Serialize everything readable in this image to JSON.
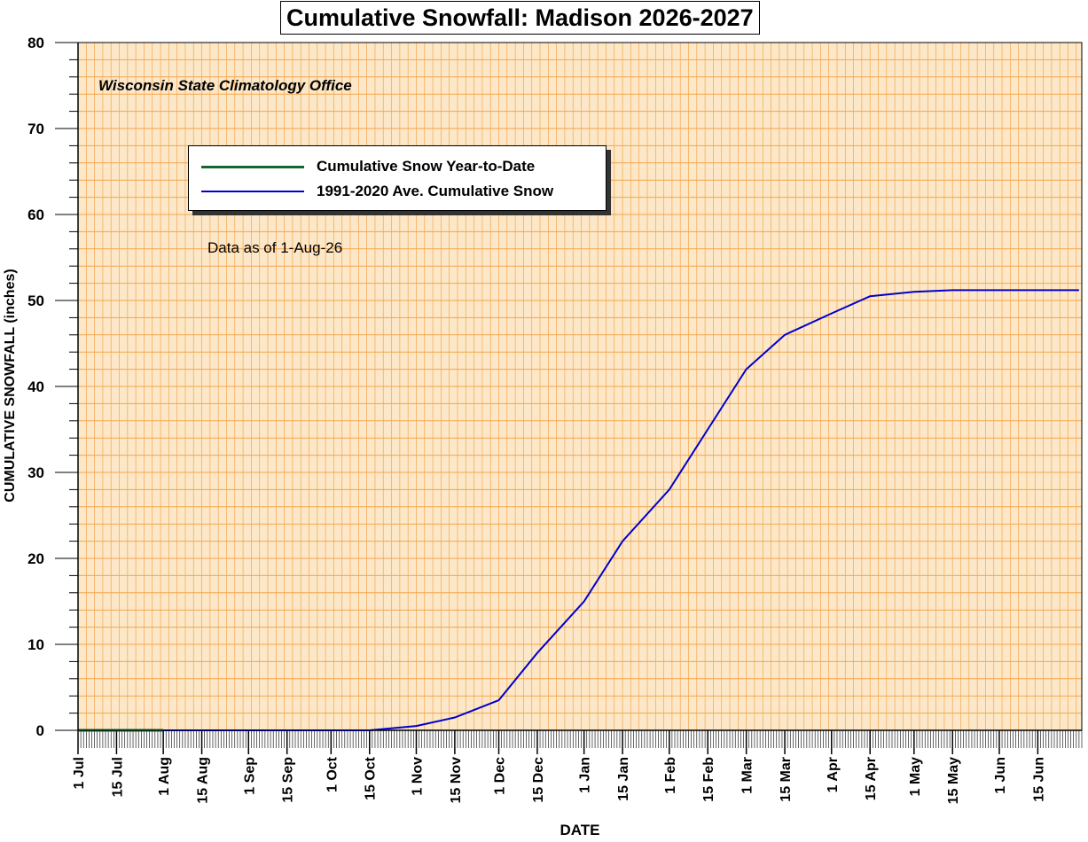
{
  "chart_data": {
    "type": "line",
    "title": "Cumulative Snowfall: Madison 2026-2027",
    "subtitle": "Wisconsin State Climatology Office",
    "annotation": "Data as of 1-Aug-26",
    "xlabel": "DATE",
    "ylabel": "CUMULATIVE SNOWFALL (inches)",
    "ylim": [
      0,
      80
    ],
    "yticks": [
      "0",
      "10",
      "20",
      "30",
      "40",
      "50",
      "60",
      "70",
      "80"
    ],
    "xticks": [
      "1 Jul",
      "15 Jul",
      "1 Aug",
      "15 Aug",
      "1 Sep",
      "15 Sep",
      "1 Oct",
      "15 Oct",
      "1 Nov",
      "15 Nov",
      "1 Dec",
      "15 Dec",
      "1 Jan",
      "15 Jan",
      "1 Feb",
      "15 Feb",
      "1 Mar",
      "15 Mar",
      "1 Apr",
      "15 Apr",
      "1 May",
      "15 May",
      "1 Jun",
      "15 Jun"
    ],
    "grid": true,
    "legend_position": "upper-left",
    "colors": {
      "plot_background": "#fce8c8",
      "gridline": "#f4a54c",
      "year_to_date": "#116633",
      "average": "#0000cc"
    },
    "series": [
      {
        "name": "Cumulative Snow Year-to-Date",
        "x": [
          "1 Jul",
          "1 Aug"
        ],
        "values": [
          0,
          0
        ]
      },
      {
        "name": "1991-2020 Ave. Cumulative Snow",
        "x": [
          "1 Jul",
          "15 Oct",
          "1 Nov",
          "15 Nov",
          "1 Dec",
          "15 Dec",
          "1 Jan",
          "15 Jan",
          "1 Feb",
          "15 Feb",
          "1 Mar",
          "15 Mar",
          "1 Apr",
          "15 Apr",
          "1 May",
          "15 May",
          "1 Jun",
          "15 Jun",
          "30 Jun"
        ],
        "values": [
          0,
          0,
          0.5,
          1.5,
          3.5,
          9,
          15,
          22,
          28,
          35,
          42,
          46,
          48.5,
          50.5,
          51,
          51.2,
          51.2,
          51.2,
          51.2
        ]
      }
    ]
  }
}
